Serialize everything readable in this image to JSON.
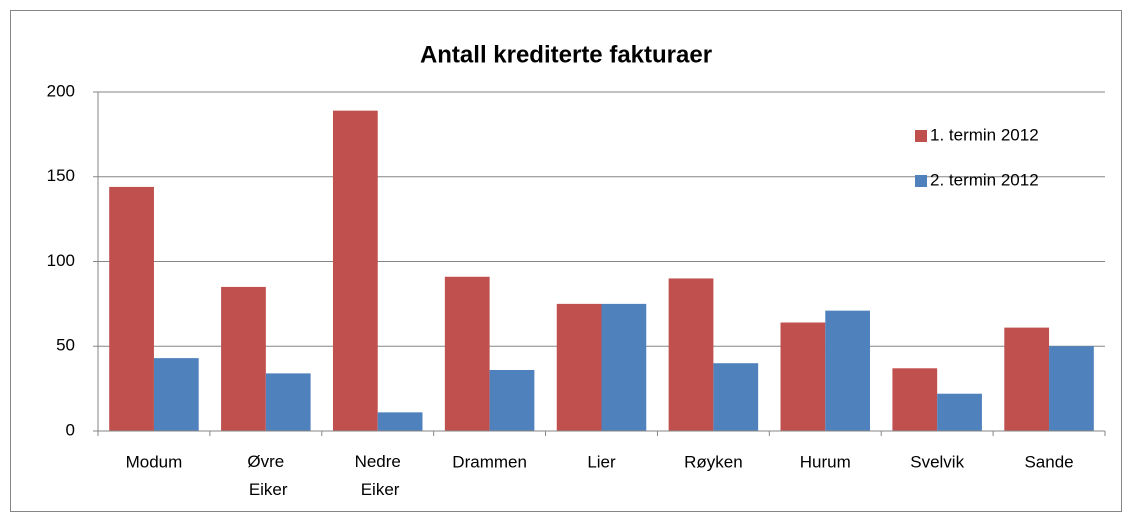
{
  "chart_data": {
    "type": "bar",
    "title": "Antall krediterte fakturaer",
    "categories": [
      "Modum",
      "Øvre Eiker",
      "Nedre Eiker",
      "Drammen",
      "Lier",
      "Røyken",
      "Hurum",
      "Svelvik",
      "Sande"
    ],
    "series": [
      {
        "name": "1. termin 2012",
        "color": "#c0504d",
        "values": [
          144,
          85,
          189,
          91,
          75,
          90,
          64,
          37,
          61
        ]
      },
      {
        "name": "2. termin 2012",
        "color": "#4f81bd",
        "values": [
          43,
          34,
          11,
          36,
          75,
          40,
          71,
          22,
          50
        ]
      }
    ],
    "ylim": [
      0,
      200
    ],
    "yticks": [
      0,
      50,
      100,
      150,
      200
    ],
    "grid": true,
    "legend": "top-right"
  }
}
